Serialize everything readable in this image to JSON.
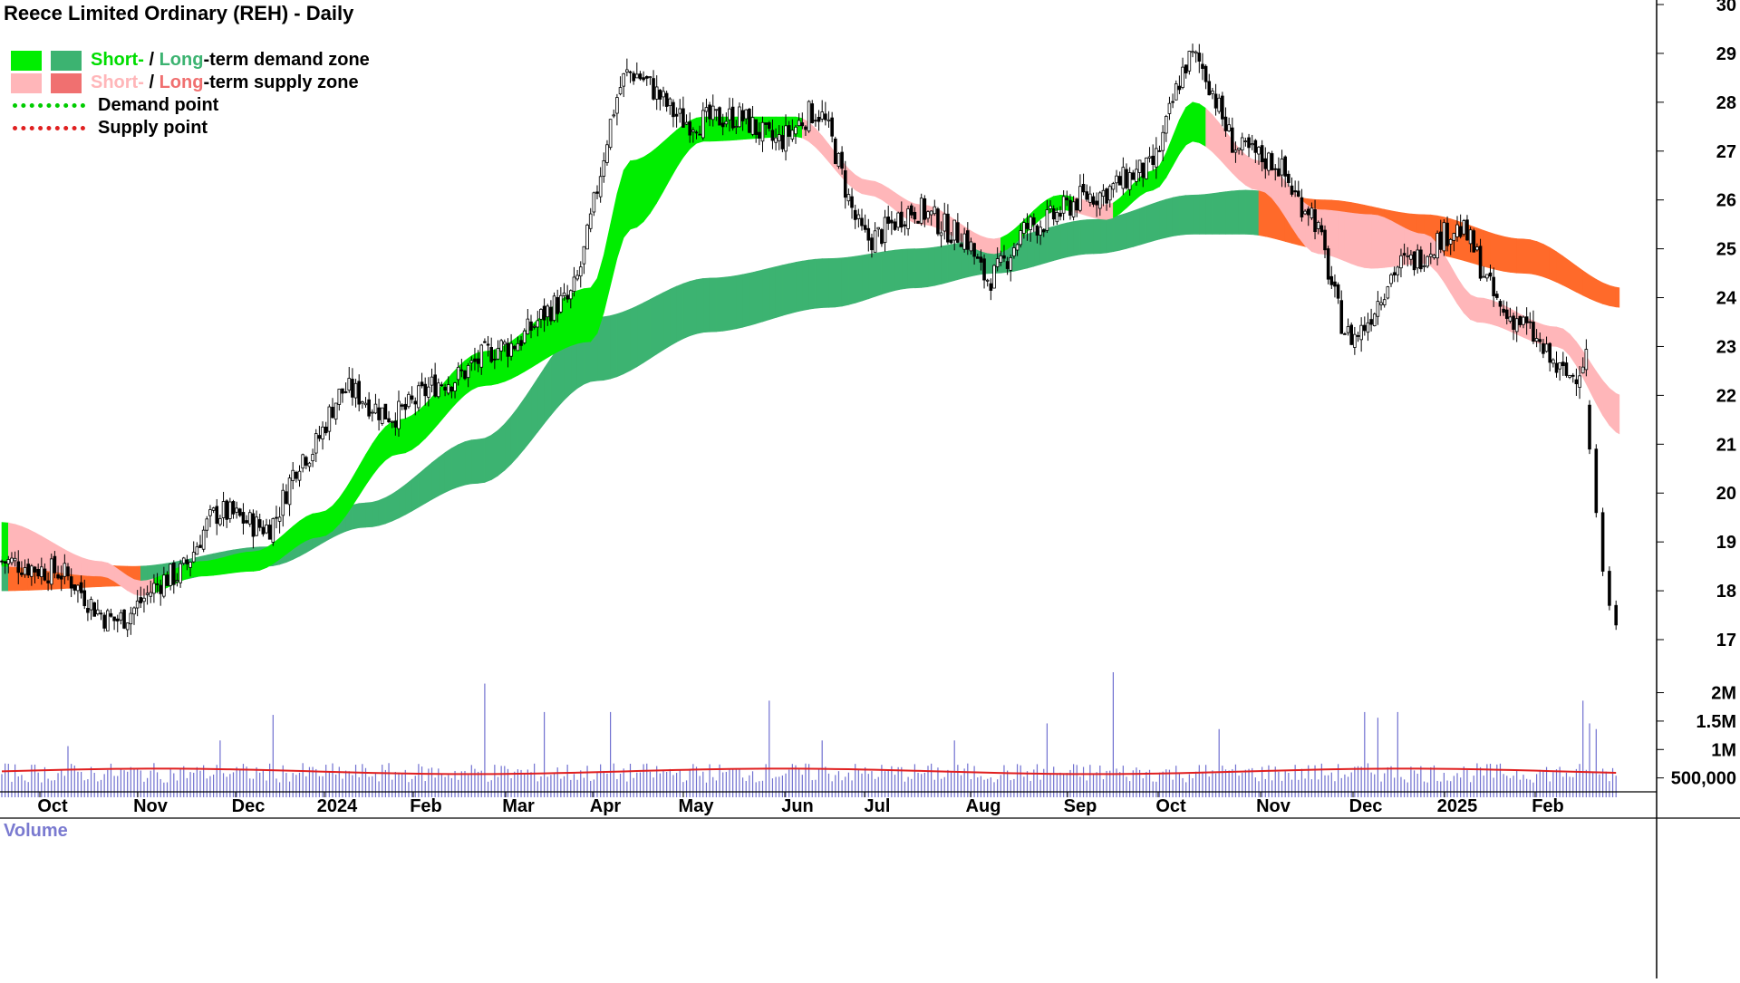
{
  "title": "Reece Limited Ordinary (REH) - Daily",
  "legend": {
    "demand_short": "Short-",
    "demand_sep": " / ",
    "demand_long": "Long",
    "demand_rest": "-term demand zone",
    "supply_short": "Short-",
    "supply_sep": " / ",
    "supply_long": "Long",
    "supply_rest": "-term supply zone",
    "demand_point": "Demand point",
    "supply_point": "Supply point"
  },
  "colors": {
    "short_demand": "#00ee00",
    "long_demand": "#3cb371",
    "short_supply": "#ffb6b9",
    "long_supply": "#ff6a2a",
    "long_supply_legend": "#f07070",
    "volume_bar": "#7070d0",
    "volume_avg": "#e02020",
    "demand_dots": "#00cc00",
    "supply_dots": "#e02020",
    "axis": "#000000"
  },
  "volume_label": "Volume",
  "chart_data": {
    "type": "candlestick",
    "title": "Reece Limited Ordinary (REH) - Daily",
    "x_tick_labels": [
      "Oct",
      "Nov",
      "Dec",
      "2024",
      "Feb",
      "Mar",
      "Apr",
      "May",
      "Jun",
      "Jul",
      "Aug",
      "Sep",
      "Oct",
      "Nov",
      "Dec",
      "2025",
      "Feb"
    ],
    "price_ticks": [
      17,
      18,
      19,
      20,
      21,
      22,
      23,
      24,
      25,
      26,
      27,
      28,
      29,
      30
    ],
    "price_tick_labels": [
      "17",
      "18",
      "19",
      "20",
      "21",
      "22",
      "23",
      "24",
      "25",
      "26",
      "27",
      "28",
      "29",
      "30"
    ],
    "ylim": [
      16.8,
      30.1
    ],
    "volume_ticks": [
      500000,
      1000000,
      1500000,
      2000000
    ],
    "volume_tick_labels": [
      "500,000",
      "1M",
      "1.5M",
      "2M"
    ],
    "volume_ylim": [
      0,
      2200000
    ],
    "price_anchors_x": [
      0,
      16,
      34,
      52,
      66,
      80,
      92,
      104,
      118,
      134,
      152,
      170,
      190,
      208,
      222,
      234,
      246,
      262,
      276,
      290,
      298,
      312,
      330,
      346,
      360,
      375,
      384,
      394,
      408,
      424,
      440,
      456,
      474,
      486
    ],
    "price_anchors_close": [
      18.6,
      18.4,
      17.4,
      18.3,
      19.6,
      19.3,
      20.8,
      22.1,
      21.6,
      22.3,
      23.0,
      23.9,
      28.6,
      27.6,
      27.7,
      27.2,
      27.8,
      25.2,
      25.8,
      25.3,
      24.4,
      25.5,
      26.1,
      26.6,
      28.9,
      27.0,
      26.8,
      25.9,
      23.2,
      24.7,
      25.4,
      23.6,
      22.4,
      23.6
    ],
    "crash_closes": [
      20.9,
      19.6,
      18.4,
      17.7,
      17.3
    ],
    "zones": {
      "short_term_anchors_x": [
        0,
        30,
        42,
        60,
        76,
        96,
        120,
        146,
        178,
        190,
        212,
        240,
        262,
        278,
        300,
        320,
        334,
        348,
        360,
        380,
        398,
        414,
        430,
        446,
        470,
        490
      ],
      "short_term_top": [
        19.4,
        18.6,
        18.2,
        18.6,
        18.8,
        19.6,
        21.5,
        22.9,
        24.2,
        26.8,
        27.7,
        27.7,
        26.4,
        25.9,
        25.2,
        26.1,
        25.9,
        26.6,
        28.0,
        26.8,
        25.8,
        25.7,
        25.3,
        24.0,
        23.4,
        22.0
      ],
      "short_term_bottom": [
        18.5,
        18.3,
        17.9,
        18.3,
        18.4,
        19.1,
        20.8,
        22.2,
        23.1,
        25.4,
        27.2,
        27.3,
        26.1,
        25.5,
        24.9,
        25.8,
        25.6,
        26.2,
        27.2,
        26.2,
        24.9,
        24.6,
        24.7,
        23.5,
        23.0,
        21.2
      ],
      "long_term_anchors_x": [
        0,
        40,
        80,
        110,
        144,
        180,
        214,
        250,
        276,
        300,
        330,
        360,
        376,
        400,
        430,
        460,
        490
      ],
      "long_term_top": [
        18.7,
        18.5,
        18.9,
        19.8,
        21.1,
        23.6,
        24.4,
        24.8,
        25.0,
        25.2,
        25.6,
        26.1,
        26.2,
        26.0,
        25.7,
        25.2,
        24.2
      ],
      "long_term_bottom": [
        18.0,
        18.1,
        18.5,
        19.3,
        20.2,
        22.3,
        23.3,
        23.8,
        24.2,
        24.5,
        24.9,
        25.3,
        25.3,
        25.0,
        24.9,
        24.5,
        23.8
      ]
    },
    "volume": {
      "typical": 430000,
      "average_line": 480000,
      "spikes": [
        [
          20,
          900000
        ],
        [
          66,
          1000000
        ],
        [
          82,
          1450000
        ],
        [
          146,
          2000000
        ],
        [
          164,
          1500000
        ],
        [
          184,
          1500000
        ],
        [
          232,
          1700000
        ],
        [
          248,
          1000000
        ],
        [
          288,
          1000000
        ],
        [
          316,
          1300000
        ],
        [
          336,
          2200000
        ],
        [
          368,
          1200000
        ],
        [
          412,
          1500000
        ],
        [
          416,
          1400000
        ],
        [
          422,
          1500000
        ],
        [
          478,
          1700000
        ],
        [
          480,
          1300000
        ],
        [
          482,
          1200000
        ]
      ]
    }
  }
}
